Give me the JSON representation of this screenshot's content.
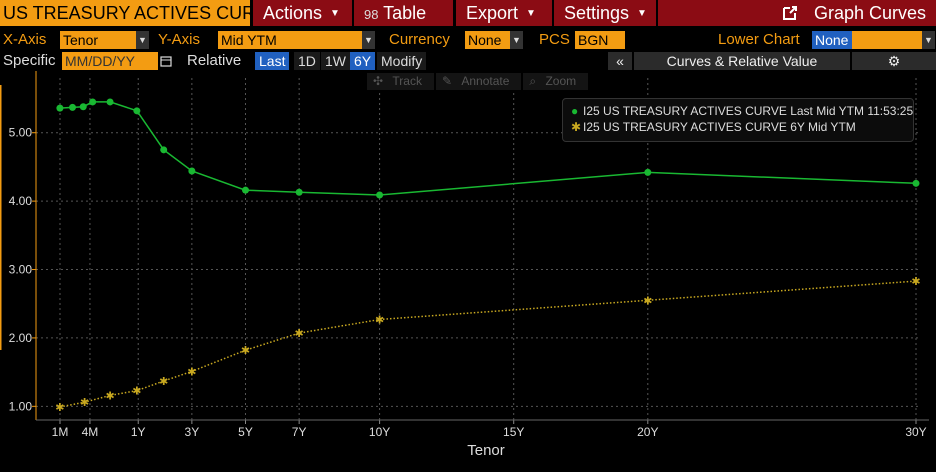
{
  "toolbar": {
    "title": "US TREASURY ACTIVES CURV",
    "actions": "Actions",
    "table_icon": "98",
    "table": "Table",
    "export": "Export",
    "settings": "Settings",
    "graph_curves": "Graph Curves"
  },
  "options": {
    "xaxis_label": "X-Axis",
    "xaxis_value": "Tenor",
    "yaxis_label": "Y-Axis",
    "yaxis_value": "Mid YTM",
    "currency_label": "Currency",
    "currency_value": "None",
    "pcs_label": "PCS",
    "pcs_value": "BGN",
    "lower_chart_label": "Lower Chart",
    "lower_chart_value": "None"
  },
  "dates": {
    "specific_label": "Specific",
    "date_placeholder": "MM/DD/YY",
    "relative_label": "Relative",
    "periods": [
      "Last",
      "1D",
      "1W",
      "6Y"
    ],
    "active_periods": [
      "Last",
      "6Y"
    ],
    "modify": "Modify",
    "collapse": "«",
    "curves_rv": "Curves & Relative Value",
    "gear": "⚙"
  },
  "tools": [
    "Track",
    "Annotate",
    "Zoom"
  ],
  "colors": {
    "accent": "#f39c12",
    "menu_bg": "#8b0c14",
    "active_blue": "#2060c0",
    "series1": "#19b832",
    "series2": "#c8a820"
  },
  "chart_data": {
    "type": "line",
    "xlabel": "Tenor",
    "ylabel": "",
    "xlim_years": [
      0,
      30
    ],
    "ylim": [
      0.8,
      5.8
    ],
    "yticks": [
      1.0,
      2.0,
      3.0,
      4.0,
      5.0
    ],
    "ytick_labels": [
      "1.00",
      "2.00",
      "3.00",
      "4.00",
      "5.00"
    ],
    "xticks": [
      {
        "label": "1M",
        "t": 0.0833
      },
      {
        "label": "4M",
        "t": 1.2
      },
      {
        "label": "1Y",
        "t": 3.0
      },
      {
        "label": "3Y",
        "t": 5.0
      },
      {
        "label": "5Y",
        "t": 7.0
      },
      {
        "label": "7Y",
        "t": 9.0
      },
      {
        "label": "10Y",
        "t": 12.0
      },
      {
        "label": "15Y",
        "t": 17.0
      },
      {
        "label": "20Y",
        "t": 22.0
      },
      {
        "label": "30Y",
        "t": 32.0
      }
    ],
    "legend_position": "top-right",
    "series": [
      {
        "name": "I25 US TREASURY ACTIVES CURVE Last Mid YTM 11:53:25",
        "marker": "dot",
        "points": [
          {
            "t": 0.08,
            "y": 5.36
          },
          {
            "t": 0.55,
            "y": 5.37
          },
          {
            "t": 0.95,
            "y": 5.38
          },
          {
            "t": 1.3,
            "y": 5.45
          },
          {
            "t": 1.95,
            "y": 5.45
          },
          {
            "t": 2.95,
            "y": 5.32
          },
          {
            "t": 3.95,
            "y": 4.75
          },
          {
            "t": 5.0,
            "y": 4.44
          },
          {
            "t": 7.0,
            "y": 4.16
          },
          {
            "t": 9.0,
            "y": 4.13
          },
          {
            "t": 12.0,
            "y": 4.09
          },
          {
            "t": 22.0,
            "y": 4.42
          },
          {
            "t": 32.0,
            "y": 4.26
          }
        ]
      },
      {
        "name": "I25 US TREASURY ACTIVES CURVE 6Y Mid YTM",
        "marker": "star",
        "points": [
          {
            "t": 0.08,
            "y": 0.99
          },
          {
            "t": 1.0,
            "y": 1.06
          },
          {
            "t": 1.95,
            "y": 1.16
          },
          {
            "t": 2.95,
            "y": 1.23
          },
          {
            "t": 3.95,
            "y": 1.37
          },
          {
            "t": 5.0,
            "y": 1.51
          },
          {
            "t": 7.0,
            "y": 1.82
          },
          {
            "t": 9.0,
            "y": 2.07
          },
          {
            "t": 12.0,
            "y": 2.27
          },
          {
            "t": 22.0,
            "y": 2.55
          },
          {
            "t": 32.0,
            "y": 2.83
          }
        ]
      }
    ]
  }
}
